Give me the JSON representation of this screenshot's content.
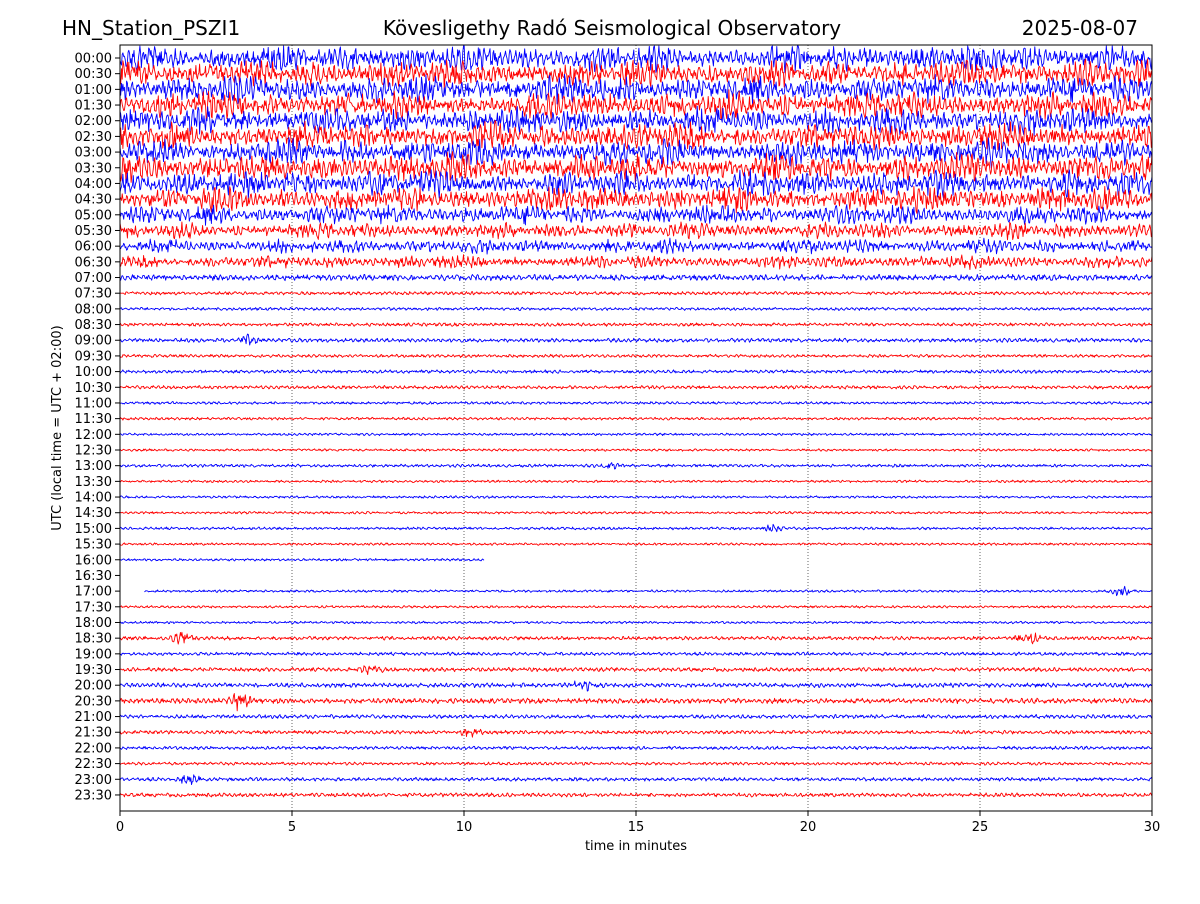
{
  "header": {
    "station": "HN_Station_PSZI1",
    "observatory": "Kövesligethy Radó Seismological Observatory",
    "date": "2025-08-07"
  },
  "chart_data": {
    "type": "line",
    "title": "Kövesligethy Radó Seismological Observatory",
    "xlabel": "time in minutes",
    "ylabel": "UTC (local time = UTC + 02:00)",
    "xlim": [
      0,
      30
    ],
    "xticks": [
      0,
      5,
      10,
      15,
      20,
      25,
      30
    ],
    "vertical_gridlines_minutes": [
      5,
      10,
      15,
      20,
      25
    ],
    "grid": "vertical dotted lines at 5-minute intervals",
    "series_colors": [
      "#0000ff",
      "#ff0000"
    ],
    "color_pattern": "alternating blue and red per row, starting with blue at 00:00",
    "rows": [
      {
        "label": "00:00",
        "activity": 1.0
      },
      {
        "label": "00:30",
        "activity": 1.0
      },
      {
        "label": "01:00",
        "activity": 1.0
      },
      {
        "label": "01:30",
        "activity": 1.0
      },
      {
        "label": "02:00",
        "activity": 1.0
      },
      {
        "label": "02:30",
        "activity": 1.0
      },
      {
        "label": "03:00",
        "activity": 1.0
      },
      {
        "label": "03:30",
        "activity": 1.0
      },
      {
        "label": "04:00",
        "activity": 0.95
      },
      {
        "label": "04:30",
        "activity": 0.9
      },
      {
        "label": "05:00",
        "activity": 0.7
      },
      {
        "label": "05:30",
        "activity": 0.55
      },
      {
        "label": "06:00",
        "activity": 0.5
      },
      {
        "label": "06:30",
        "activity": 0.45
      },
      {
        "label": "07:00",
        "activity": 0.15
      },
      {
        "label": "07:30",
        "activity": 0.06
      },
      {
        "label": "08:00",
        "activity": 0.05
      },
      {
        "label": "08:30",
        "activity": 0.06
      },
      {
        "label": "09:00",
        "activity": 0.08
      },
      {
        "label": "09:30",
        "activity": 0.05
      },
      {
        "label": "10:00",
        "activity": 0.06
      },
      {
        "label": "10:30",
        "activity": 0.06
      },
      {
        "label": "11:00",
        "activity": 0.04
      },
      {
        "label": "11:30",
        "activity": 0.04
      },
      {
        "label": "12:00",
        "activity": 0.03
      },
      {
        "label": "12:30",
        "activity": 0.03
      },
      {
        "label": "13:00",
        "activity": 0.05
      },
      {
        "label": "13:30",
        "activity": 0.03
      },
      {
        "label": "14:00",
        "activity": 0.03
      },
      {
        "label": "14:30",
        "activity": 0.03
      },
      {
        "label": "15:00",
        "activity": 0.04
      },
      {
        "label": "15:30",
        "activity": 0.03
      },
      {
        "label": "16:00",
        "activity": 0.03
      },
      {
        "label": "16:30",
        "activity": 0.0
      },
      {
        "label": "17:00",
        "activity": 0.03
      },
      {
        "label": "17:30",
        "activity": 0.03
      },
      {
        "label": "18:00",
        "activity": 0.03
      },
      {
        "label": "18:30",
        "activity": 0.07
      },
      {
        "label": "19:00",
        "activity": 0.06
      },
      {
        "label": "19:30",
        "activity": 0.08
      },
      {
        "label": "20:00",
        "activity": 0.1
      },
      {
        "label": "20:30",
        "activity": 0.12
      },
      {
        "label": "21:00",
        "activity": 0.08
      },
      {
        "label": "21:30",
        "activity": 0.07
      },
      {
        "label": "22:00",
        "activity": 0.06
      },
      {
        "label": "22:30",
        "activity": 0.05
      },
      {
        "label": "23:00",
        "activity": 0.07
      },
      {
        "label": "23:30",
        "activity": 0.08
      }
    ],
    "data_gaps": [
      {
        "row": "16:00",
        "from_minute": 10.6,
        "to_minute": 30
      },
      {
        "row": "16:30",
        "from_minute": 0,
        "to_minute": 30
      },
      {
        "row": "17:00",
        "from_minute": 0,
        "to_minute": 0.7
      }
    ],
    "notable_events": [
      {
        "row": "09:00",
        "minute": 3.7,
        "strength": 2.2
      },
      {
        "row": "13:00",
        "minute": 14.2,
        "strength": 1.8
      },
      {
        "row": "15:00",
        "minute": 19.0,
        "strength": 1.6
      },
      {
        "row": "18:30",
        "minute": 1.8,
        "strength": 2.5
      },
      {
        "row": "18:30",
        "minute": 26.4,
        "strength": 3.0
      },
      {
        "row": "19:30",
        "minute": 7.3,
        "strength": 2.0
      },
      {
        "row": "20:00",
        "minute": 13.5,
        "strength": 2.2
      },
      {
        "row": "20:30",
        "minute": 3.5,
        "strength": 4.5
      },
      {
        "row": "21:30",
        "minute": 10.2,
        "strength": 2.0
      },
      {
        "row": "23:00",
        "minute": 2.0,
        "strength": 2.2
      },
      {
        "row": "17:00",
        "minute": 29.1,
        "strength": 3.0
      }
    ]
  }
}
